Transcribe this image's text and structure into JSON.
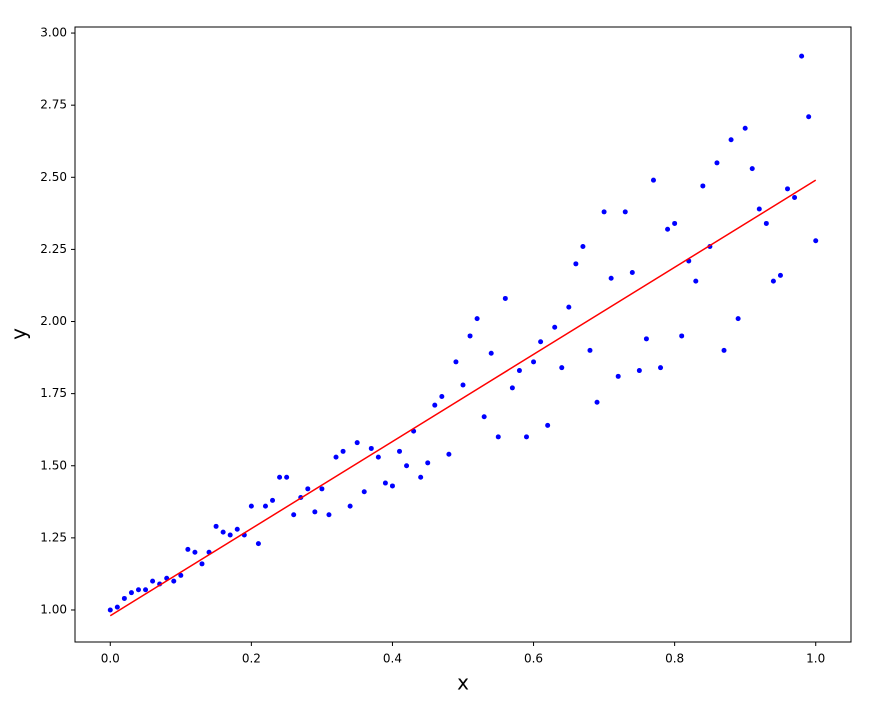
{
  "chart_data": {
    "type": "scatter",
    "x_label": "x",
    "y_label": "y",
    "xlim": [
      -0.05,
      1.05
    ],
    "ylim": [
      0.889,
      3.021
    ],
    "xticks": [
      {
        "value": 0,
        "label": "0.0"
      },
      0.2,
      0.4,
      0.6,
      0.8,
      {
        "value": 1,
        "label": "1.0"
      }
    ],
    "yticks": [
      {
        "value": 1,
        "label": "1.00"
      },
      1.25,
      {
        "value": 1.5,
        "label": "1.50"
      },
      1.75,
      {
        "value": 2,
        "label": "2.00"
      },
      2.25,
      {
        "value": 2.5,
        "label": "2.50"
      },
      2.75,
      {
        "value": 3,
        "label": "3.00"
      }
    ],
    "grid": false,
    "series": [
      {
        "mode": "markers",
        "color": "#0000ff",
        "x": [
          0,
          0.01,
          0.02,
          0.03,
          0.04,
          0.05,
          0.06,
          0.07,
          0.08,
          0.09,
          0.1,
          0.11,
          0.12,
          0.13,
          0.14,
          0.15,
          0.16,
          0.17,
          0.18,
          0.19,
          0.2,
          0.21,
          0.22,
          0.23,
          0.24,
          0.25,
          0.26,
          0.27,
          0.28,
          0.29,
          0.3,
          0.31,
          0.32,
          0.33,
          0.34,
          0.35,
          0.36,
          0.37,
          0.38,
          0.39,
          0.4,
          0.41,
          0.42,
          0.43,
          0.44,
          0.45,
          0.46,
          0.47,
          0.48,
          0.49,
          0.5,
          0.51,
          0.52,
          0.53,
          0.54,
          0.55,
          0.56,
          0.57,
          0.58,
          0.59,
          0.6,
          0.61,
          0.62,
          0.63,
          0.64,
          0.65,
          0.66,
          0.67,
          0.68,
          0.69,
          0.7,
          0.71,
          0.72,
          0.73,
          0.74,
          0.75,
          0.76,
          0.77,
          0.78,
          0.79,
          0.8,
          0.81,
          0.82,
          0.83,
          0.84,
          0.85,
          0.86,
          0.87,
          0.88,
          0.89,
          0.9,
          0.91,
          0.92,
          0.93,
          0.94,
          0.95,
          0.96,
          0.97,
          0.98,
          0.99,
          1
        ],
        "values": [
          1.0,
          1.01,
          1.04,
          1.06,
          1.07,
          1.07,
          1.1,
          1.09,
          1.11,
          1.1,
          1.12,
          1.21,
          1.2,
          1.16,
          1.2,
          1.29,
          1.27,
          1.26,
          1.28,
          1.26,
          1.36,
          1.23,
          1.36,
          1.38,
          1.46,
          1.46,
          1.33,
          1.39,
          1.42,
          1.34,
          1.42,
          1.33,
          1.53,
          1.55,
          1.36,
          1.58,
          1.41,
          1.56,
          1.53,
          1.44,
          1.43,
          1.55,
          1.5,
          1.62,
          1.46,
          1.51,
          1.71,
          1.74,
          1.54,
          1.86,
          1.78,
          1.95,
          2.01,
          1.67,
          1.89,
          1.6,
          2.08,
          1.77,
          1.83,
          1.6,
          1.86,
          1.93,
          1.64,
          1.98,
          1.84,
          2.05,
          2.2,
          2.26,
          1.9,
          1.72,
          2.38,
          2.15,
          1.81,
          2.38,
          2.17,
          1.83,
          1.94,
          2.49,
          1.84,
          2.32,
          2.34,
          1.95,
          2.21,
          2.14,
          2.47,
          2.26,
          2.55,
          1.9,
          2.63,
          2.01,
          2.67,
          2.53,
          2.39,
          2.34,
          2.14,
          2.16,
          2.46,
          2.43,
          2.92,
          2.71,
          2.28
        ]
      },
      {
        "mode": "line",
        "color": "#ff0000",
        "x": [
          0,
          1
        ],
        "values": [
          0.98,
          2.49
        ]
      }
    ]
  }
}
